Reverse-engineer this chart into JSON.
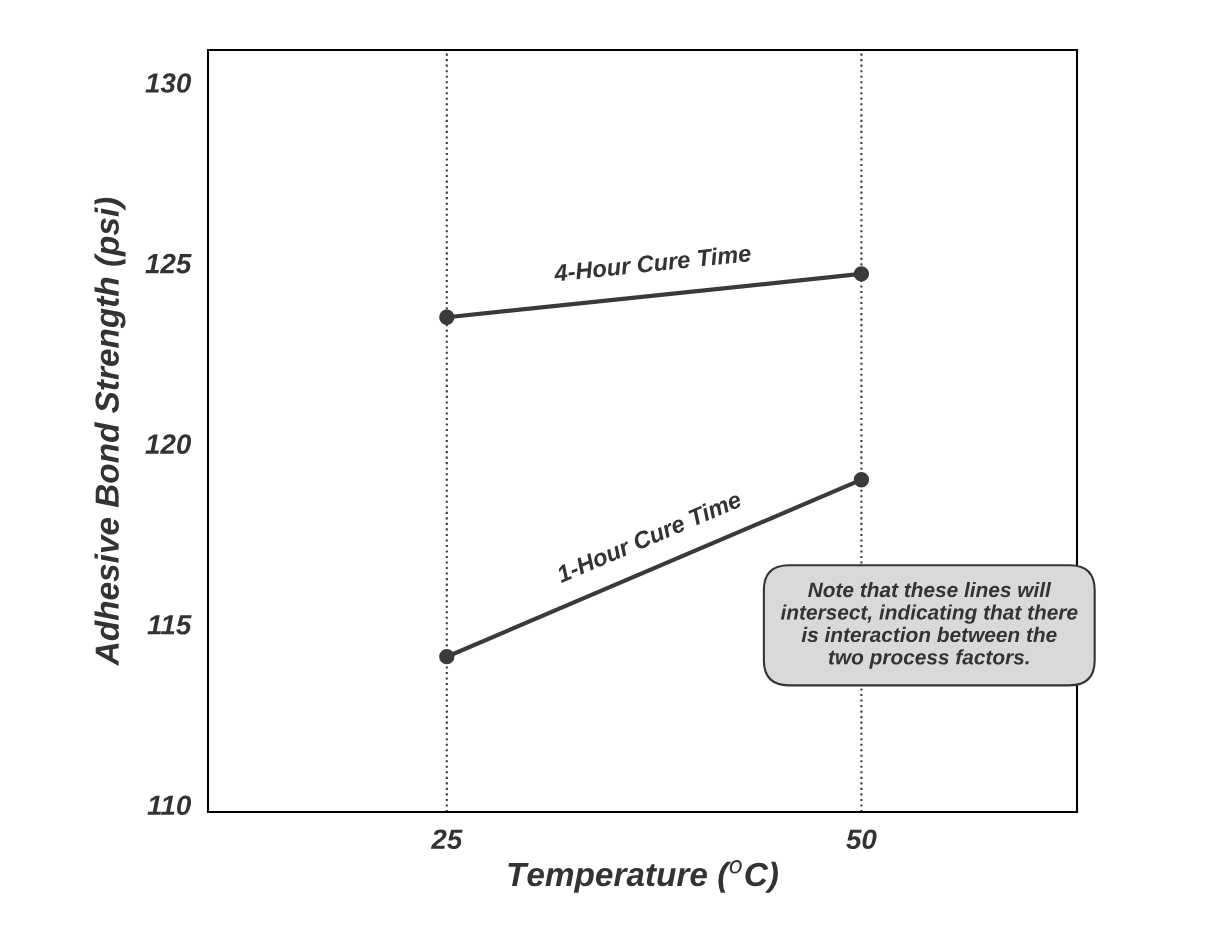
{
  "chart_data": {
    "type": "line",
    "xlabel": "Temperature ($^{o}$C)",
    "ylabel": "Adhesive Bond Strength (psi)",
    "x": [
      25,
      50
    ],
    "series": [
      {
        "name": "4-Hour Cure Time",
        "color": "#3a3a3a",
        "values": [
          123.5,
          124.7
        ]
      },
      {
        "name": "1-Hour Cure Time",
        "color": "#3a3a3a",
        "values": [
          114.1,
          119.0
        ]
      }
    ],
    "xlim": [
      10.6,
      63
    ],
    "xticks": [
      25,
      50
    ],
    "ylim": [
      109.8,
      130.9
    ],
    "yticks": [
      110,
      115,
      120,
      125,
      130
    ],
    "ref_lines": [
      {
        "axis": "x",
        "value": 25,
        "color": "#3a3a3a",
        "line_style": "dotted"
      },
      {
        "axis": "x",
        "value": 50,
        "color": "#3a3a3a",
        "line_style": "dotted"
      }
    ],
    "annotations": [
      "Note that these lines will\nintersect, indicating that there\nis interaction between the\ntwo process factors."
    ],
    "marker": "circle",
    "line_style": "solid",
    "grid": false,
    "legend": false
  }
}
